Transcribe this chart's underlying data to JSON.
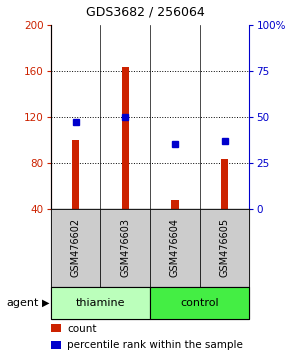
{
  "title": "GDS3682 / 256064",
  "samples": [
    "GSM476602",
    "GSM476603",
    "GSM476604",
    "GSM476605"
  ],
  "count_values": [
    100,
    163,
    48,
    83
  ],
  "percentile_values": [
    47,
    50,
    35,
    37
  ],
  "count_baseline": 40,
  "left_ylim": [
    40,
    200
  ],
  "right_ylim": [
    0,
    100
  ],
  "left_yticks": [
    40,
    80,
    120,
    160,
    200
  ],
  "right_yticks": [
    0,
    25,
    50,
    75,
    100
  ],
  "right_yticklabels": [
    "0",
    "25",
    "50",
    "75",
    "100%"
  ],
  "bar_color": "#cc2200",
  "dot_color": "#0000cc",
  "groups": [
    {
      "label": "thiamine",
      "samples": [
        0,
        1
      ],
      "color": "#bbffbb"
    },
    {
      "label": "control",
      "samples": [
        2,
        3
      ],
      "color": "#44ee44"
    }
  ],
  "sample_box_color": "#cccccc",
  "agent_label": "agent",
  "legend_count_label": "count",
  "legend_pct_label": "percentile rank within the sample",
  "bar_width": 0.15
}
